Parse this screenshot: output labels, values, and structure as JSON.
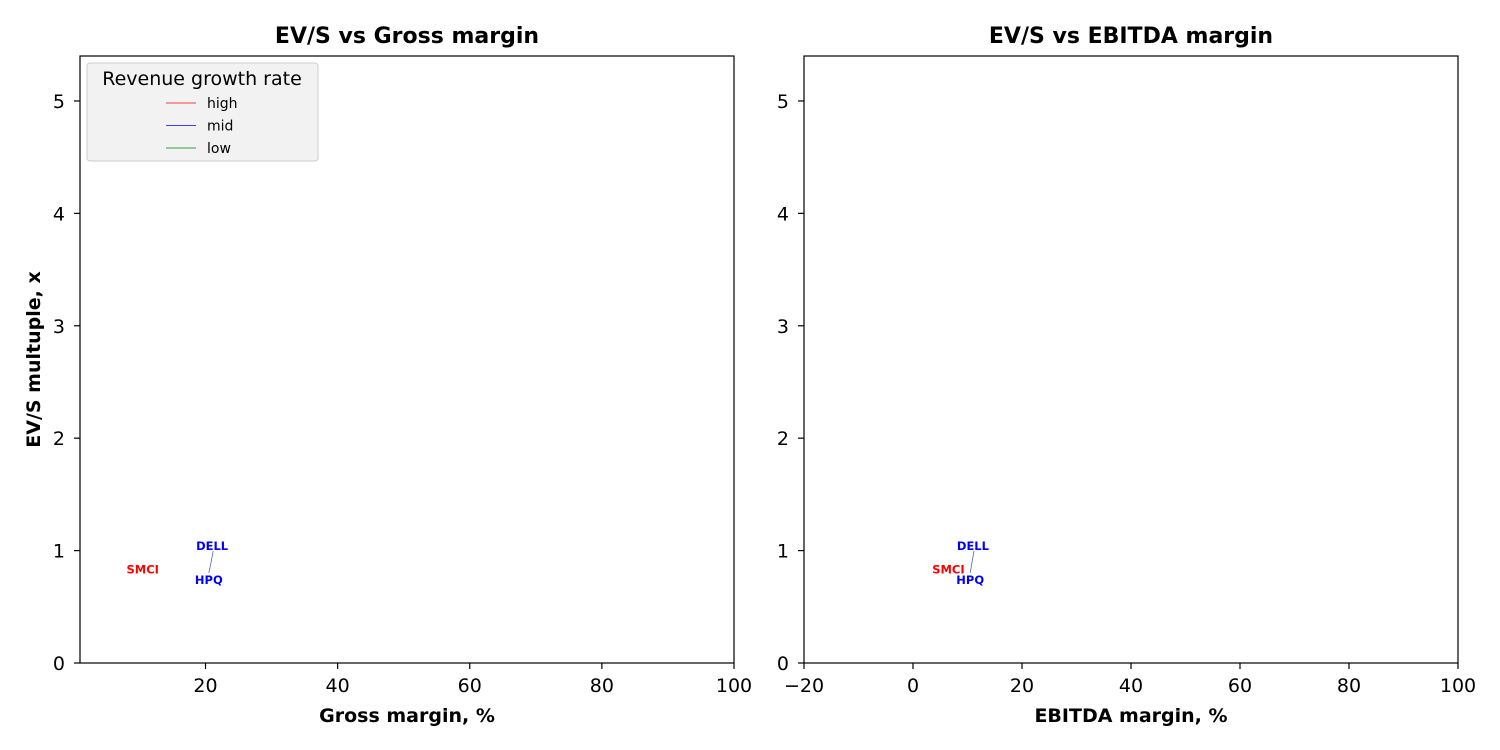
{
  "chart_data": [
    {
      "type": "scatter",
      "title": "EV/S vs Gross margin",
      "xlabel": "Gross margin, %",
      "ylabel": "EV/S multuple, x",
      "xlim": [
        1,
        100
      ],
      "ylim": [
        0,
        5.4
      ],
      "xticks": [
        20,
        40,
        60,
        80,
        100
      ],
      "yticks": [
        0,
        1,
        2,
        3,
        4,
        5
      ],
      "legend": {
        "title": "Revenue growth rate",
        "placement": "upper-left",
        "entries": [
          {
            "label": "high",
            "color": "#ff0000"
          },
          {
            "label": "mid",
            "color": "#0000ff"
          },
          {
            "label": "low",
            "color": "#008000"
          }
        ]
      },
      "points": [
        {
          "label": "SMCI",
          "x": 10.5,
          "y": 0.83,
          "group": "high",
          "color": "#ff0000"
        },
        {
          "label": "DELL",
          "x": 21.0,
          "y": 1.04,
          "group": "mid",
          "color": "#0000ff"
        },
        {
          "label": "HPQ",
          "x": 20.5,
          "y": 0.74,
          "group": "mid",
          "color": "#0000ff"
        }
      ]
    },
    {
      "type": "scatter",
      "title": "EV/S vs EBITDA margin",
      "xlabel": "EBITDA margin, %",
      "ylabel": "",
      "xlim": [
        -20,
        100
      ],
      "ylim": [
        0,
        5.4
      ],
      "xticks": [
        -20,
        0,
        20,
        40,
        60,
        80,
        100
      ],
      "yticks": [
        0,
        1,
        2,
        3,
        4,
        5
      ],
      "points": [
        {
          "label": "SMCI",
          "x": 6.5,
          "y": 0.83,
          "group": "high",
          "color": "#ff0000"
        },
        {
          "label": "DELL",
          "x": 11.0,
          "y": 1.04,
          "group": "mid",
          "color": "#0000ff"
        },
        {
          "label": "HPQ",
          "x": 10.5,
          "y": 0.74,
          "group": "mid",
          "color": "#0000ff"
        }
      ]
    }
  ]
}
